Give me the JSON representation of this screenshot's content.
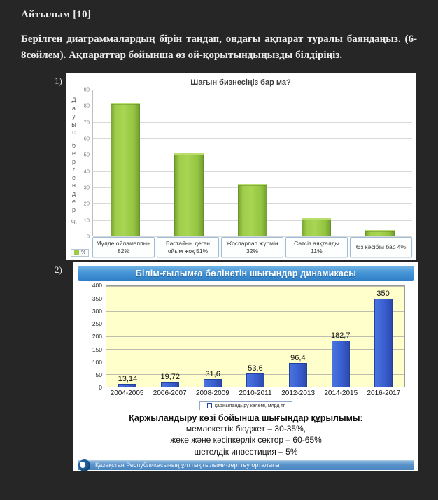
{
  "colors": {
    "page_bg": "#262626",
    "panel_bg": "#ffffff",
    "chart1_bar_green": "#9ccb44",
    "chart2_bar_blue": "#3a5fd0",
    "chart2_plot_bg": "#ffffcc",
    "banner_blue": "#3e8ed0",
    "footer_blue": "#4a86c0"
  },
  "header": {
    "title": "Айтылым [10]",
    "instructions": "Берілген диаграммалардың бірін таңдап, ондағы ақпарат туралы баяндаңыз. (6-8сөйлем). Ақпараттар бойынша өз ой-қорытындыңызды білдіріңіз."
  },
  "markers": [
    "1)",
    "2)"
  ],
  "chart_data": [
    {
      "type": "bar",
      "title": "Шағын бизнесіңіз бар ма?",
      "xlabel": "",
      "ylabel": "Дауыс бергендер %",
      "categories": [
        "Мүлде ойламаппын 82%",
        "Бастайын деген ойым жоқ 51%",
        "Жоспарлап жүрмін 32%",
        "Сәтсіз аяқталды 11%",
        "Өз кәсібім бар 4%"
      ],
      "values": [
        82,
        51,
        32,
        11,
        4
      ],
      "ylim": [
        0,
        90
      ],
      "yticks": [
        90,
        80,
        70,
        60,
        50,
        40,
        30,
        20,
        10,
        0
      ],
      "grid": true,
      "legend": [
        "%"
      ],
      "legend_position": "bottom-left",
      "bar_color": "#9ccb44"
    },
    {
      "type": "bar",
      "title": "Білім-ғылымға бөлінетін шығындар динамикасы",
      "xlabel": "",
      "ylabel": "",
      "categories": [
        "2004-2005",
        "2006-2007",
        "2008-2009",
        "2010-2011",
        "2012-2013",
        "2014-2015",
        "2016-2017"
      ],
      "values": [
        13.14,
        19.72,
        31.6,
        53.6,
        96.4,
        182.7,
        350
      ],
      "value_labels": [
        "13,14",
        "19,72",
        "31,6",
        "53,6",
        "96,4",
        "182,7",
        "350"
      ],
      "ylim": [
        0,
        400
      ],
      "yticks": [
        400,
        350,
        300,
        250,
        200,
        150,
        100,
        50,
        0
      ],
      "grid": true,
      "legend": [
        "қаржыландыру көлемі, млрд тг"
      ],
      "legend_position": "bottom-center",
      "bar_color": "#3a5fd0",
      "notes_title": "Қаржыландыру көзі бойынша шығындар құрылымы:",
      "notes": [
        "мемлекеттік бюджет  – 30-35%,",
        "жеке және кәсіпкерлік сектор  – 60-65%",
        "шетелдік инвестиция  – 5%"
      ],
      "footer": "Қазақстан Республикасының ұлттық ғылыми-зерттеу орталығы"
    }
  ]
}
